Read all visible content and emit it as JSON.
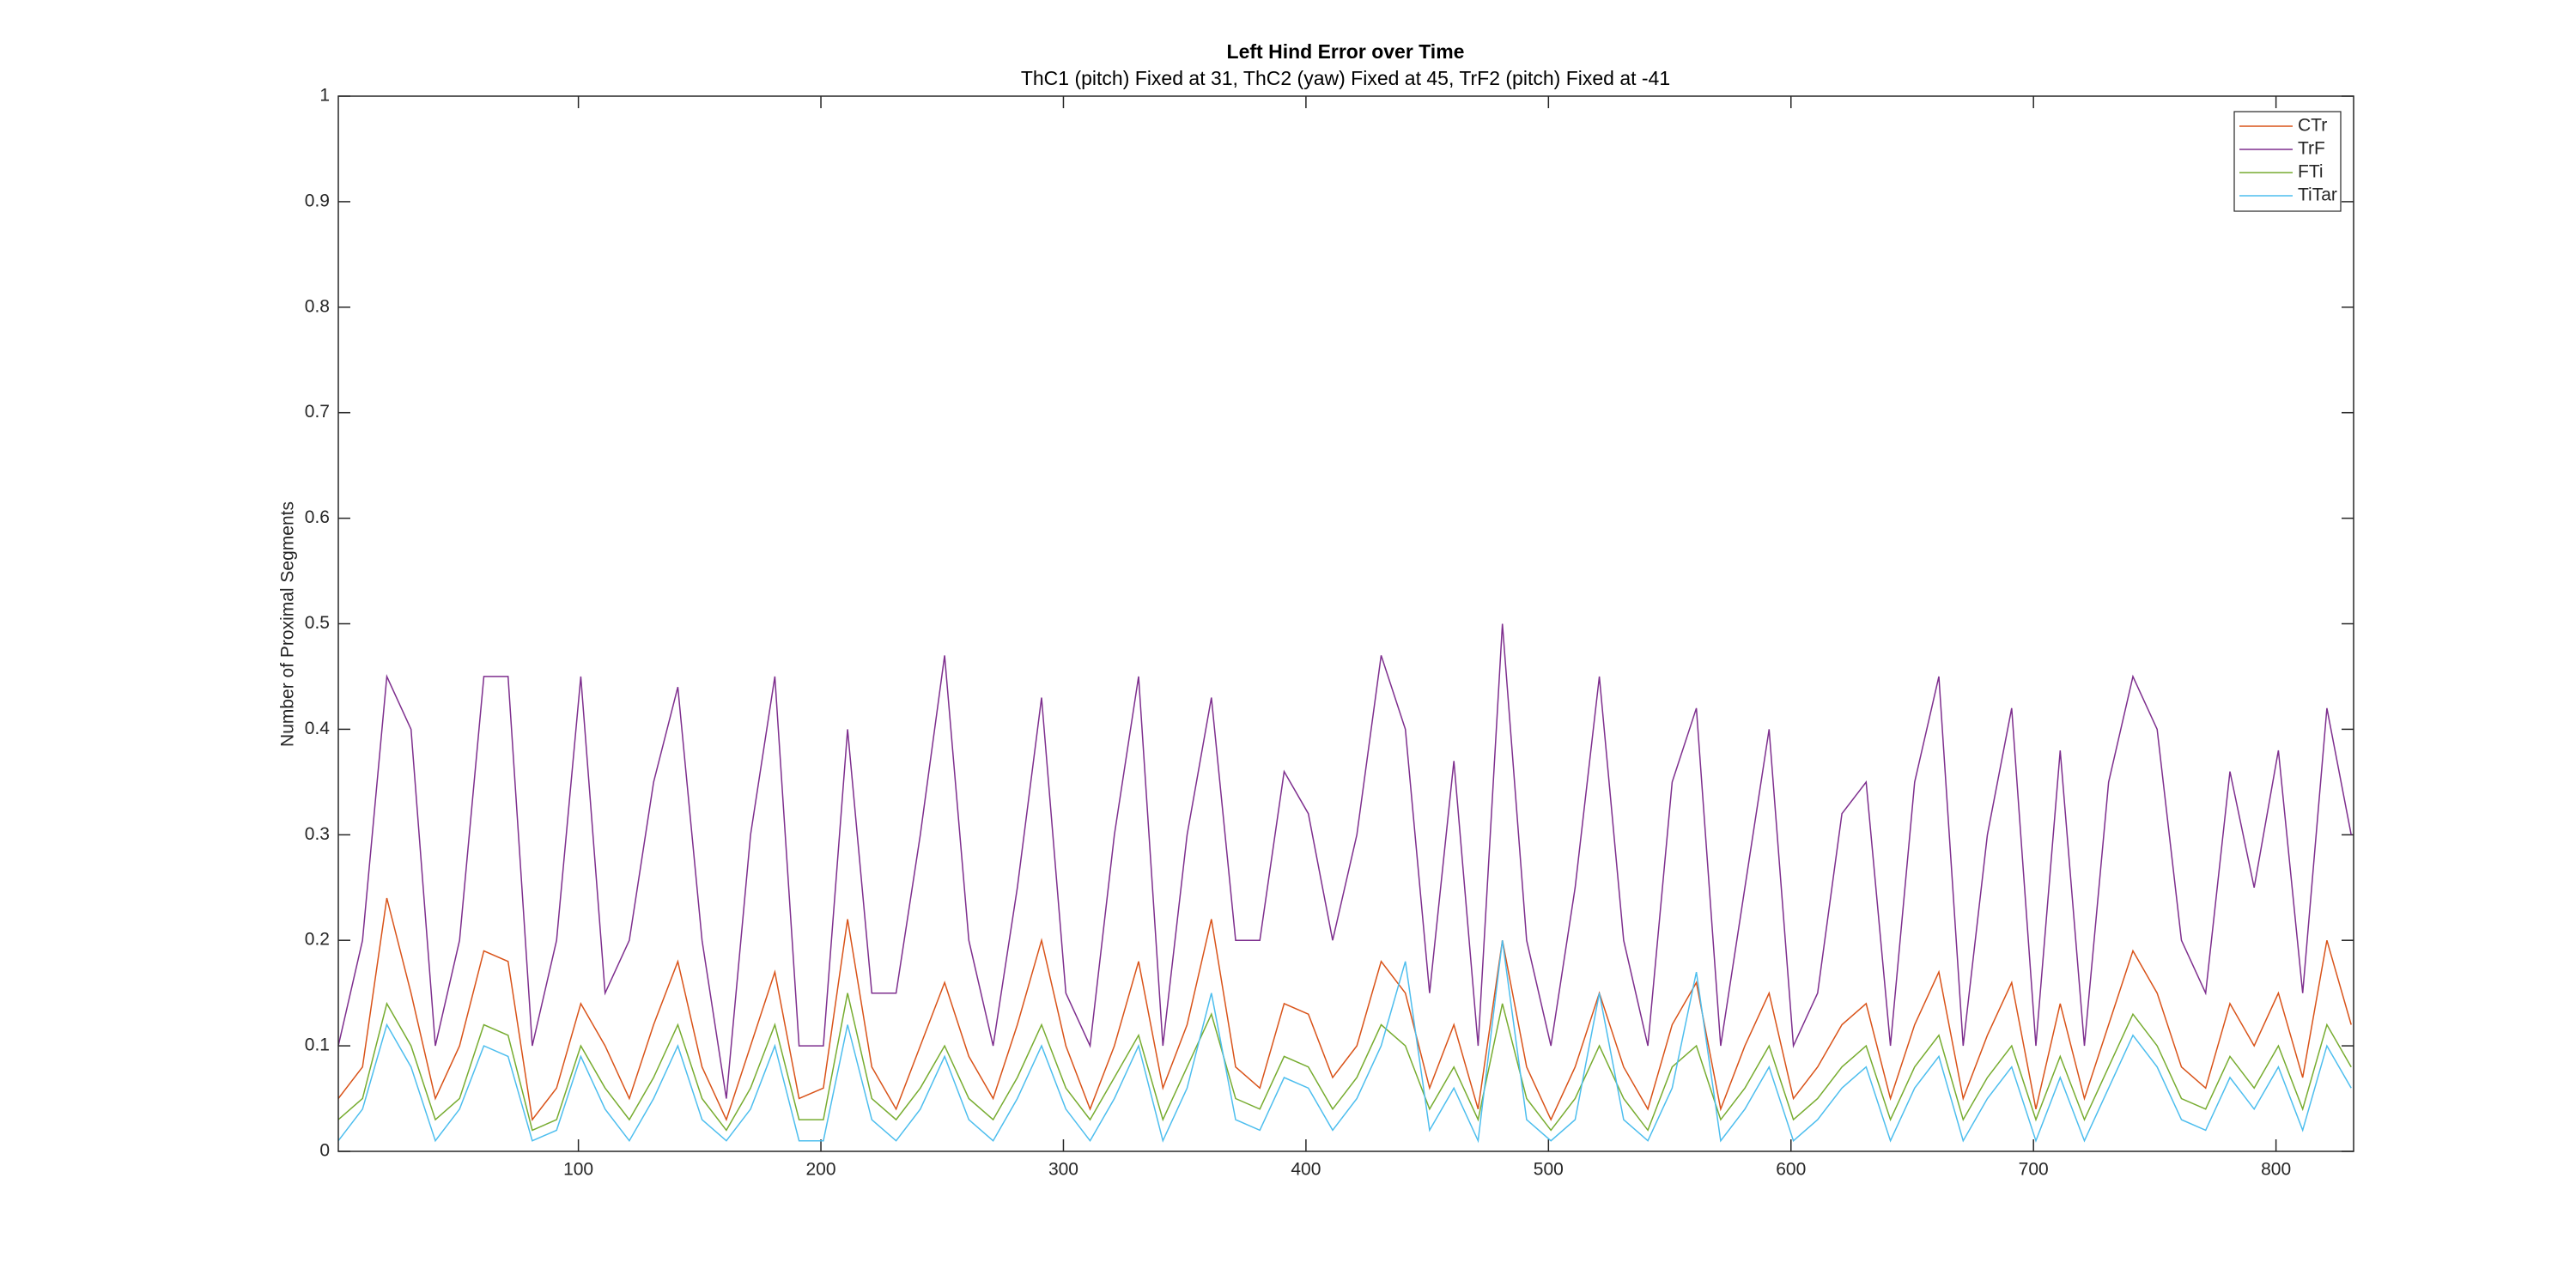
{
  "chart_data": {
    "type": "line",
    "title": "Left Hind Error over Time",
    "subtitle": "ThC1 (pitch) Fixed at 31, ThC2 (yaw) Fixed at 45, TrF2 (pitch) Fixed at -41",
    "y_label": "Number of Proximal Segments",
    "x": [
      1,
      11,
      21,
      31,
      41,
      51,
      61,
      71,
      81,
      91,
      101,
      111,
      121,
      131,
      141,
      151,
      161,
      171,
      181,
      191,
      201,
      211,
      221,
      231,
      241,
      251,
      261,
      271,
      281,
      291,
      301,
      311,
      321,
      331,
      341,
      351,
      361,
      371,
      381,
      391,
      401,
      411,
      421,
      431,
      441,
      451,
      461,
      471,
      481,
      491,
      501,
      511,
      521,
      531,
      541,
      551,
      561,
      571,
      581,
      591,
      601,
      611,
      621,
      631,
      641,
      651,
      661,
      671,
      681,
      691,
      701,
      711,
      721,
      731,
      741,
      751,
      761,
      771,
      781,
      791,
      801,
      811,
      821,
      831
    ],
    "series": [
      {
        "name": "CTr",
        "color": "#D95319",
        "values": [
          0.05,
          0.08,
          0.24,
          0.15,
          0.05,
          0.1,
          0.19,
          0.18,
          0.03,
          0.06,
          0.14,
          0.1,
          0.05,
          0.12,
          0.18,
          0.08,
          0.03,
          0.1,
          0.17,
          0.05,
          0.06,
          0.22,
          0.08,
          0.04,
          0.1,
          0.16,
          0.09,
          0.05,
          0.12,
          0.2,
          0.1,
          0.04,
          0.1,
          0.18,
          0.06,
          0.12,
          0.22,
          0.08,
          0.06,
          0.14,
          0.13,
          0.07,
          0.1,
          0.18,
          0.15,
          0.06,
          0.12,
          0.04,
          0.2,
          0.08,
          0.03,
          0.08,
          0.15,
          0.08,
          0.04,
          0.12,
          0.16,
          0.04,
          0.1,
          0.15,
          0.05,
          0.08,
          0.12,
          0.14,
          0.05,
          0.12,
          0.17,
          0.05,
          0.11,
          0.16,
          0.04,
          0.14,
          0.05,
          0.12,
          0.19,
          0.15,
          0.08,
          0.06,
          0.14,
          0.1,
          0.15,
          0.07,
          0.2,
          0.12
        ]
      },
      {
        "name": "TrF",
        "color": "#7E2F8E",
        "values": [
          0.1,
          0.2,
          0.45,
          0.4,
          0.1,
          0.2,
          0.45,
          0.45,
          0.1,
          0.2,
          0.45,
          0.15,
          0.2,
          0.35,
          0.44,
          0.2,
          0.05,
          0.3,
          0.45,
          0.1,
          0.1,
          0.4,
          0.15,
          0.15,
          0.3,
          0.47,
          0.2,
          0.1,
          0.25,
          0.43,
          0.15,
          0.1,
          0.3,
          0.45,
          0.1,
          0.3,
          0.43,
          0.2,
          0.2,
          0.36,
          0.32,
          0.2,
          0.3,
          0.47,
          0.4,
          0.15,
          0.37,
          0.1,
          0.5,
          0.2,
          0.1,
          0.25,
          0.45,
          0.2,
          0.1,
          0.35,
          0.42,
          0.1,
          0.25,
          0.4,
          0.1,
          0.15,
          0.32,
          0.35,
          0.1,
          0.35,
          0.45,
          0.1,
          0.3,
          0.42,
          0.1,
          0.38,
          0.1,
          0.35,
          0.45,
          0.4,
          0.2,
          0.15,
          0.36,
          0.25,
          0.38,
          0.15,
          0.42,
          0.3
        ]
      },
      {
        "name": "FTi",
        "color": "#77AC30",
        "values": [
          0.03,
          0.05,
          0.14,
          0.1,
          0.03,
          0.05,
          0.12,
          0.11,
          0.02,
          0.03,
          0.1,
          0.06,
          0.03,
          0.07,
          0.12,
          0.05,
          0.02,
          0.06,
          0.12,
          0.03,
          0.03,
          0.15,
          0.05,
          0.03,
          0.06,
          0.1,
          0.05,
          0.03,
          0.07,
          0.12,
          0.06,
          0.03,
          0.07,
          0.11,
          0.03,
          0.08,
          0.13,
          0.05,
          0.04,
          0.09,
          0.08,
          0.04,
          0.07,
          0.12,
          0.1,
          0.04,
          0.08,
          0.03,
          0.14,
          0.05,
          0.02,
          0.05,
          0.1,
          0.05,
          0.02,
          0.08,
          0.1,
          0.03,
          0.06,
          0.1,
          0.03,
          0.05,
          0.08,
          0.1,
          0.03,
          0.08,
          0.11,
          0.03,
          0.07,
          0.1,
          0.03,
          0.09,
          0.03,
          0.08,
          0.13,
          0.1,
          0.05,
          0.04,
          0.09,
          0.06,
          0.1,
          0.04,
          0.12,
          0.08
        ]
      },
      {
        "name": "TiTar",
        "color": "#4DBEEE",
        "values": [
          0.01,
          0.04,
          0.12,
          0.08,
          0.01,
          0.04,
          0.1,
          0.09,
          0.01,
          0.02,
          0.09,
          0.04,
          0.01,
          0.05,
          0.1,
          0.03,
          0.01,
          0.04,
          0.1,
          0.01,
          0.01,
          0.12,
          0.03,
          0.01,
          0.04,
          0.09,
          0.03,
          0.01,
          0.05,
          0.1,
          0.04,
          0.01,
          0.05,
          0.1,
          0.01,
          0.06,
          0.15,
          0.03,
          0.02,
          0.07,
          0.06,
          0.02,
          0.05,
          0.1,
          0.18,
          0.02,
          0.06,
          0.01,
          0.2,
          0.03,
          0.01,
          0.03,
          0.15,
          0.03,
          0.01,
          0.06,
          0.17,
          0.01,
          0.04,
          0.08,
          0.01,
          0.03,
          0.06,
          0.08,
          0.01,
          0.06,
          0.09,
          0.01,
          0.05,
          0.08,
          0.01,
          0.07,
          0.01,
          0.06,
          0.11,
          0.08,
          0.03,
          0.02,
          0.07,
          0.04,
          0.08,
          0.02,
          0.1,
          0.06
        ]
      }
    ],
    "xlim": [
      1,
      832
    ],
    "xticks": [
      100,
      200,
      300,
      400,
      500,
      600,
      700,
      800
    ],
    "ylim": [
      0,
      1
    ],
    "yticks": [
      0,
      0.1,
      0.2,
      0.3,
      0.4,
      0.5,
      0.6,
      0.7,
      0.8,
      0.9,
      1
    ],
    "grid": false,
    "legend": "northeast"
  }
}
